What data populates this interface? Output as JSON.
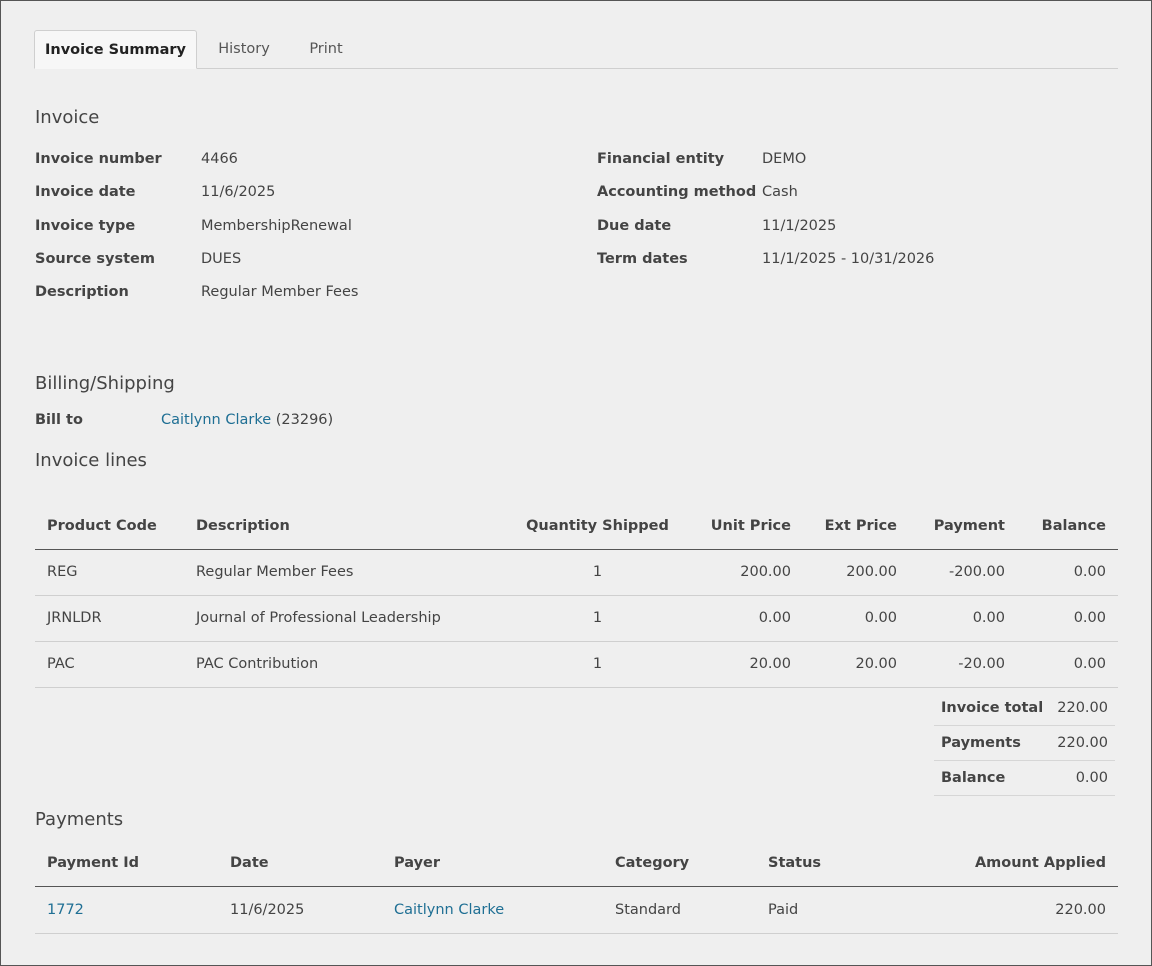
{
  "tabs": [
    {
      "label": "Invoice Summary"
    },
    {
      "label": "History"
    },
    {
      "label": "Print"
    }
  ],
  "invoice": {
    "title": "Invoice",
    "left": [
      {
        "label": "Invoice number",
        "value": "4466"
      },
      {
        "label": "Invoice date",
        "value": "11/6/2025"
      },
      {
        "label": "Invoice type",
        "value": "MembershipRenewal"
      },
      {
        "label": "Source system",
        "value": "DUES"
      },
      {
        "label": "Description",
        "value": "Regular Member Fees"
      }
    ],
    "right": [
      {
        "label": "Financial entity",
        "value": "DEMO"
      },
      {
        "label": "Accounting method",
        "value": "Cash"
      },
      {
        "label": "Due date",
        "value": "11/1/2025"
      },
      {
        "label": "Term dates",
        "value": "11/1/2025 - 10/31/2026"
      }
    ]
  },
  "billing": {
    "title": "Billing/Shipping",
    "bill_to_label": "Bill to",
    "bill_to_name": "Caitlynn Clarke",
    "bill_to_id": " (23296)"
  },
  "lines": {
    "title": "Invoice lines",
    "headers": [
      "Product Code",
      "Description",
      "Quantity Shipped",
      "Unit Price",
      "Ext Price",
      "Payment",
      "Balance"
    ],
    "rows": [
      [
        "REG",
        "Regular Member Fees",
        "1",
        "200.00",
        "200.00",
        "-200.00",
        "0.00"
      ],
      [
        "JRNLDR",
        "Journal of Professional Leadership",
        "1",
        "0.00",
        "0.00",
        "0.00",
        "0.00"
      ],
      [
        "PAC",
        "PAC Contribution",
        "1",
        "20.00",
        "20.00",
        "-20.00",
        "0.00"
      ]
    ]
  },
  "totals": [
    {
      "label": "Invoice total",
      "value": "220.00"
    },
    {
      "label": "Payments",
      "value": "220.00"
    },
    {
      "label": "Balance",
      "value": "0.00"
    }
  ],
  "payments": {
    "title": "Payments",
    "headers": [
      "Payment Id",
      "Date",
      "Payer",
      "Category",
      "Status",
      "Amount Applied"
    ],
    "rows": [
      [
        "1772",
        "11/6/2025",
        "Caitlynn Clarke",
        "Standard",
        "Paid",
        "220.00"
      ]
    ]
  },
  "colors": {
    "link": "#1f6f94",
    "background": "#efefef",
    "text": "#444444"
  }
}
